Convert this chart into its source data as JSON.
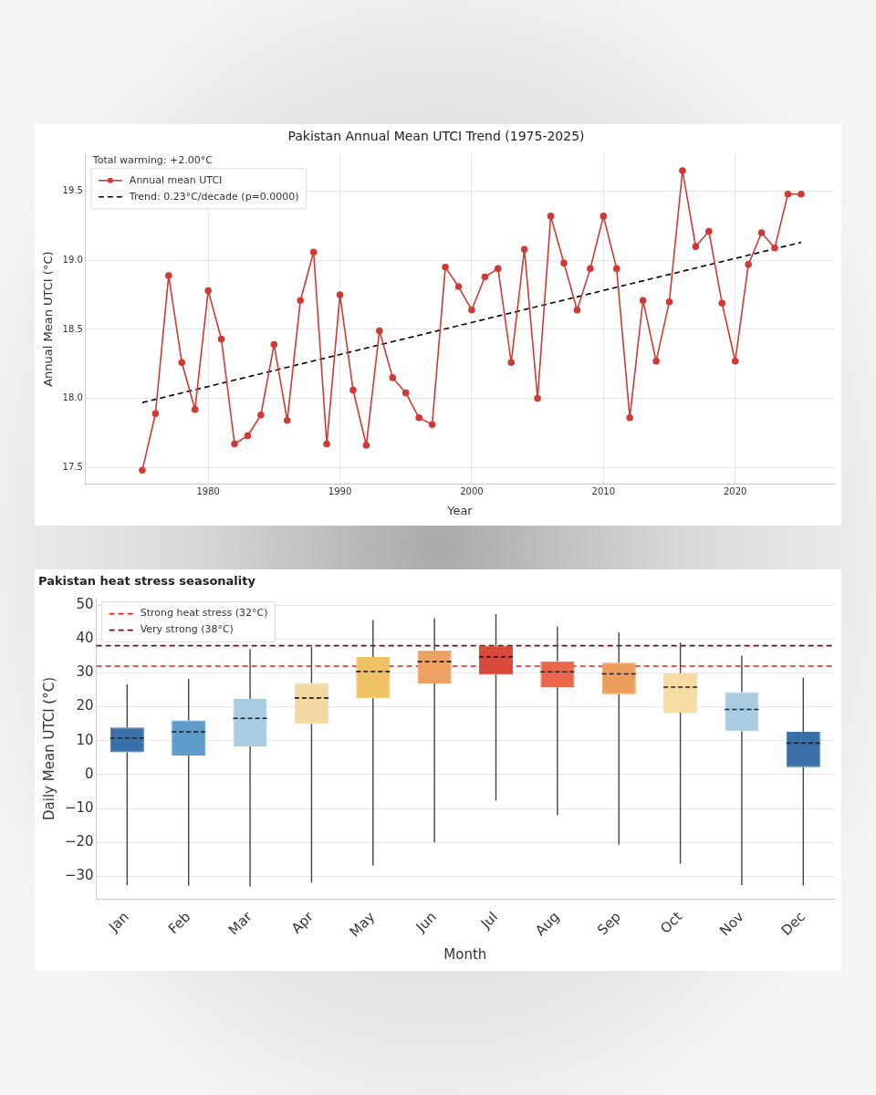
{
  "chart_data": [
    {
      "type": "line",
      "title": "Pakistan Annual Mean UTCI Trend (1975-2025)",
      "xlabel": "Year",
      "ylabel": "Annual Mean UTCI (°C)",
      "x": [
        1975,
        1976,
        1977,
        1978,
        1979,
        1980,
        1981,
        1982,
        1983,
        1984,
        1985,
        1986,
        1987,
        1988,
        1989,
        1990,
        1991,
        1992,
        1993,
        1994,
        1995,
        1996,
        1997,
        1998,
        1999,
        2000,
        2001,
        2002,
        2003,
        2004,
        2005,
        2006,
        2007,
        2008,
        2009,
        2010,
        2011,
        2012,
        2013,
        2014,
        2015,
        2016,
        2017,
        2018,
        2019,
        2020,
        2021,
        2022,
        2023,
        2024,
        2025
      ],
      "series": [
        {
          "name": "Annual mean UTCI",
          "color": "#d03a34",
          "marker": "circle",
          "values": [
            17.48,
            17.89,
            18.89,
            18.26,
            17.92,
            18.78,
            18.43,
            17.67,
            17.73,
            17.88,
            18.39,
            17.84,
            18.71,
            19.06,
            17.67,
            18.75,
            18.06,
            17.66,
            18.49,
            18.15,
            18.04,
            17.86,
            17.81,
            18.95,
            18.81,
            18.64,
            18.88,
            18.94,
            18.26,
            19.08,
            18.0,
            19.32,
            18.98,
            18.64,
            18.94,
            19.32,
            18.94,
            17.86,
            18.71,
            18.27,
            18.7,
            19.65,
            19.1,
            19.21,
            18.69,
            18.27,
            18.97,
            19.2,
            19.09,
            19.48,
            19.48
          ]
        },
        {
          "name": "Trend: 0.23°C/decade (p=0.0000)",
          "color": "#000000",
          "marker": "none",
          "line_style": "dashed",
          "x": [
            1975,
            2025
          ],
          "values": [
            17.97,
            19.13
          ]
        }
      ],
      "xlim": [
        1970.7,
        2027.5
      ],
      "xticks": [
        1980,
        1990,
        2000,
        2010,
        2020
      ],
      "ylim": [
        17.38,
        19.77
      ],
      "yticks": [
        17.5,
        {
          "value": 18,
          "label": "18.0"
        },
        18.5,
        {
          "value": 19,
          "label": "19.0"
        },
        19.5
      ],
      "grid": true,
      "legend": "top left",
      "annotations": [
        "Total warming: +2.00°C"
      ]
    },
    {
      "type": "box",
      "title": "Pakistan heat stress seasonality",
      "xlabel": "Month",
      "ylabel": "Daily Mean UTCI (°C)",
      "categories": [
        "Jan",
        "Feb",
        "Mar",
        "Apr",
        "May",
        "Jun",
        "Jul",
        "Aug",
        "Sep",
        "Oct",
        "Nov",
        "Dec"
      ],
      "colors": [
        "#3a70a9",
        "#5d9cc8",
        "#a9cce1",
        "#f4d9a2",
        "#efc266",
        "#eca062",
        "#da4a3a",
        "#e8664b",
        "#eb9d5d",
        "#f6dca3",
        "#a9cce1",
        "#3a70a9"
      ],
      "boxes": [
        {
          "low": -32.6,
          "q1": 6.6,
          "median": 10.8,
          "q3": 13.9,
          "high": 26.6
        },
        {
          "low": -32.8,
          "q1": 5.6,
          "median": 12.6,
          "q3": 16.0,
          "high": 28.2
        },
        {
          "low": -33.0,
          "q1": 8.3,
          "median": 16.6,
          "q3": 22.3,
          "high": 37.0
        },
        {
          "low": -31.8,
          "q1": 15.0,
          "median": 22.6,
          "q3": 27.0,
          "high": 37.6
        },
        {
          "low": -26.8,
          "q1": 22.5,
          "median": 30.4,
          "q3": 34.7,
          "high": 45.6
        },
        {
          "low": -19.9,
          "q1": 26.9,
          "median": 33.3,
          "q3": 36.6,
          "high": 46.1
        },
        {
          "low": -7.6,
          "q1": 29.5,
          "median": 34.7,
          "q3": 38.0,
          "high": 47.3
        },
        {
          "low": -12.0,
          "q1": 25.8,
          "median": 30.3,
          "q3": 33.4,
          "high": 43.7
        },
        {
          "low": -20.7,
          "q1": 23.7,
          "median": 29.7,
          "q3": 33.0,
          "high": 42.0
        },
        {
          "low": -26.3,
          "q1": 18.3,
          "median": 25.8,
          "q3": 29.9,
          "high": 38.9
        },
        {
          "low": -32.6,
          "q1": 12.8,
          "median": 19.2,
          "q3": 24.3,
          "high": 35.1
        },
        {
          "low": -32.7,
          "q1": 2.2,
          "median": 9.3,
          "q3": 12.6,
          "high": 28.6
        }
      ],
      "ylim": [
        -36.7,
        52
      ],
      "yticks": [
        {
          "value": -30,
          "label": "−30"
        },
        {
          "value": -20,
          "label": "−20"
        },
        {
          "value": -10,
          "label": "−10"
        },
        0,
        10,
        20,
        30,
        40,
        50
      ],
      "ref_lines": [
        {
          "axis": "y",
          "value": 32,
          "label": "Strong heat stress (32°C)",
          "color": "#e8201a",
          "line_style": "dashed"
        },
        {
          "axis": "y",
          "value": 38,
          "label": "Very strong (38°C)",
          "color": "#6b0f0f",
          "line_style": "dashed"
        }
      ],
      "grid": "y",
      "legend": "top left"
    }
  ]
}
